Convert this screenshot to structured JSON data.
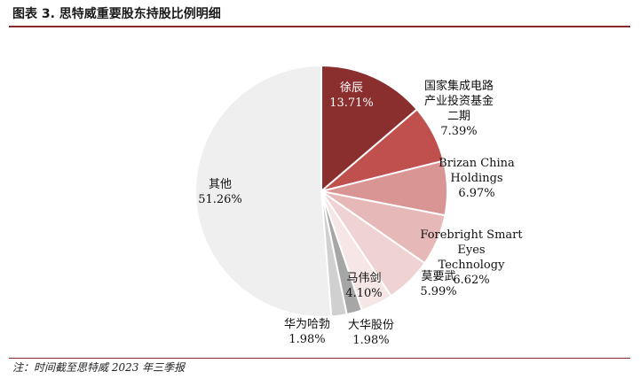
{
  "figure": {
    "title": "图表 3. 思特威重要股东持股比例明细",
    "note": "注：时间截至思特威 2023 年三季报"
  },
  "chart_data": {
    "type": "pie",
    "title": "",
    "slices": [
      {
        "label_lines": [
          "徐辰"
        ],
        "value": 13.71,
        "value_text": "13.71%",
        "color": "#8b2e2e"
      },
      {
        "label_lines": [
          "国家集成电路",
          "产业投资基金",
          "二期"
        ],
        "value": 7.39,
        "value_text": "7.39%",
        "color": "#c0504d"
      },
      {
        "label_lines": [
          "Brizan China",
          "Holdings"
        ],
        "value": 6.97,
        "value_text": "6.97%",
        "color": "#d99594"
      },
      {
        "label_lines": [
          "Forebright Smart",
          "Eyes",
          "Technology"
        ],
        "value": 6.62,
        "value_text": "6.62%",
        "color": "#e6b9b8"
      },
      {
        "label_lines": [
          "莫要武"
        ],
        "value": 5.99,
        "value_text": "5.99%",
        "color": "#efd3d2"
      },
      {
        "label_lines": [
          "马伟剑"
        ],
        "value": 4.1,
        "value_text": "4.10%",
        "color": "#f6e6e6"
      },
      {
        "label_lines": [
          "大华股份"
        ],
        "value": 1.98,
        "value_text": "1.98%",
        "color": "#a6a6a6"
      },
      {
        "label_lines": [
          "华为哈勃"
        ],
        "value": 1.98,
        "value_text": "1.98%",
        "color": "#d0d0d0"
      },
      {
        "label_lines": [
          "其他"
        ],
        "value": 51.26,
        "value_text": "51.26%",
        "color": "#efefef"
      }
    ]
  }
}
